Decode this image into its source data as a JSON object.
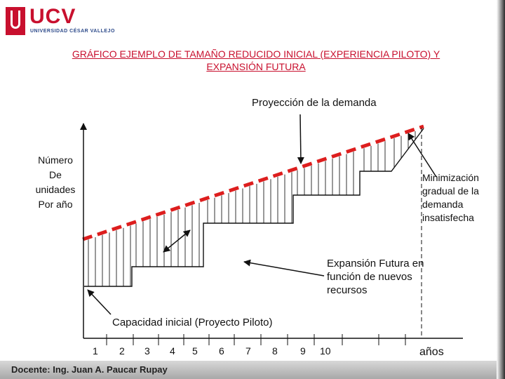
{
  "logo": {
    "name": "UCV",
    "subtitle": "UNIVERSIDAD CÉSAR VALLEJO"
  },
  "title_line1": "GRÁFICO EJEMPLO DE TAMAÑO REDUCIDO INICIAL (EXPERIENCIA PILOTO) Y",
  "title_line2": "EXPANSIÓN FUTURA",
  "labels": {
    "projection": "Proyección de la demanda",
    "y_axis": [
      "Número",
      "De",
      "unidades",
      "Por año"
    ],
    "minimization": "Minimización gradual de la demanda insatisfecha",
    "expansion": "Expansión Futura en función de nuevos recursos",
    "initial": "Capacidad inicial (Proyecto Piloto)",
    "x_axis": "años"
  },
  "x_ticks": [
    "1",
    "2",
    "3",
    "4",
    "5",
    "6",
    "7",
    "8",
    "9",
    "10"
  ],
  "footer": "Docente: Ing. Juan A. Paucar Rupay",
  "colors": {
    "demand_line": "#dd1e1e",
    "title": "#c8102e"
  }
}
